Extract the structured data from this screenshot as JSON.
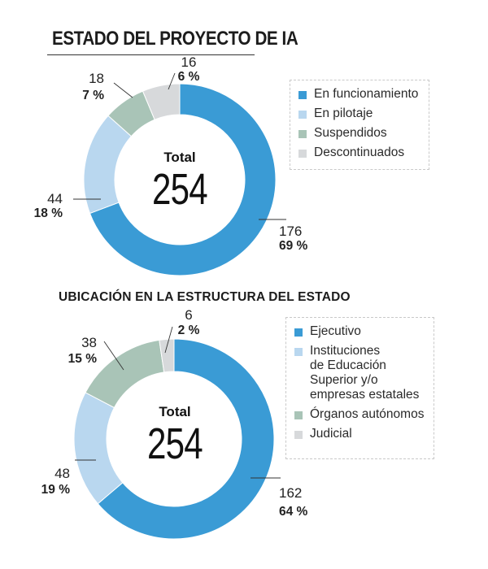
{
  "chart_data": [
    {
      "type": "donut",
      "title": "ESTADO DEL PROYECTO DE IA",
      "total_label": "Total",
      "total_value": "254",
      "categories": [
        "En funcionamiento",
        "En pilotaje",
        "Suspendidos",
        "Descontinuados"
      ],
      "values": [
        176,
        44,
        18,
        16
      ],
      "percent_labels": [
        "69 %",
        "18 %",
        "7 %",
        "6 %"
      ],
      "colors": [
        "#3a9bd5",
        "#b9d7ef",
        "#a9c4b7",
        "#d7d9db"
      ]
    },
    {
      "type": "donut",
      "title": "UBICACIÓN EN LA ESTRUCTURA DEL ESTADO",
      "total_label": "Total",
      "total_value": "254",
      "categories": [
        "Ejecutivo",
        "Instituciones de Educación Superior y/o empresas estatales",
        "Órganos autónomos",
        "Judicial"
      ],
      "legend_lines": [
        [
          "Ejecutivo"
        ],
        [
          "Instituciones",
          "de Educación",
          "Superior y/o",
          "empresas estatales"
        ],
        [
          "Órganos autónomos"
        ],
        [
          "Judicial"
        ]
      ],
      "values": [
        162,
        48,
        38,
        6
      ],
      "percent_labels": [
        "64 %",
        "19 %",
        "15 %",
        "2 %"
      ],
      "colors": [
        "#3a9bd5",
        "#b9d7ef",
        "#a9c4b7",
        "#d7d9db"
      ]
    }
  ]
}
